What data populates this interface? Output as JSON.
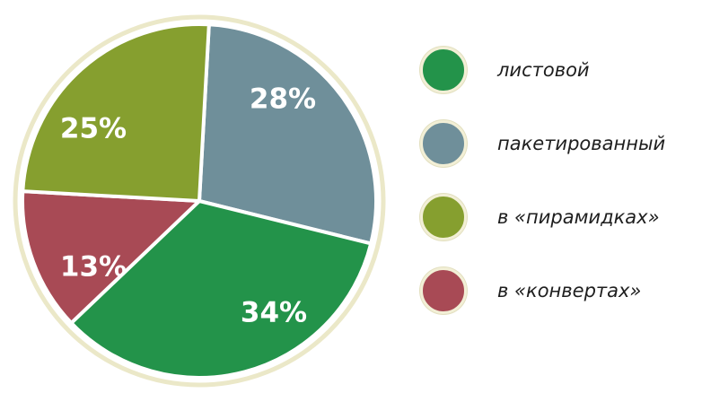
{
  "chart_data": {
    "type": "pie",
    "slices": [
      {
        "name": "пакетированный",
        "value": 28,
        "label": "28%",
        "color": "#6f8f9a"
      },
      {
        "name": "листовой",
        "value": 34,
        "label": "34%",
        "color": "#23934a"
      },
      {
        "name": "в «конвертах»",
        "value": 13,
        "label": "13%",
        "color": "#a84a55"
      },
      {
        "name": "в «пирамидках»",
        "value": 25,
        "label": "25%",
        "color": "#869f2f"
      }
    ],
    "legend": [
      {
        "label": "листовой",
        "color": "#23934a"
      },
      {
        "label": "пакетированный",
        "color": "#6f8f9a"
      },
      {
        "label": "в «пирамидках»",
        "color": "#869f2f"
      },
      {
        "label": "в «конвертах»",
        "color": "#a84a55"
      }
    ],
    "legend_position": "right",
    "rim_color": "#ebe8c8"
  }
}
